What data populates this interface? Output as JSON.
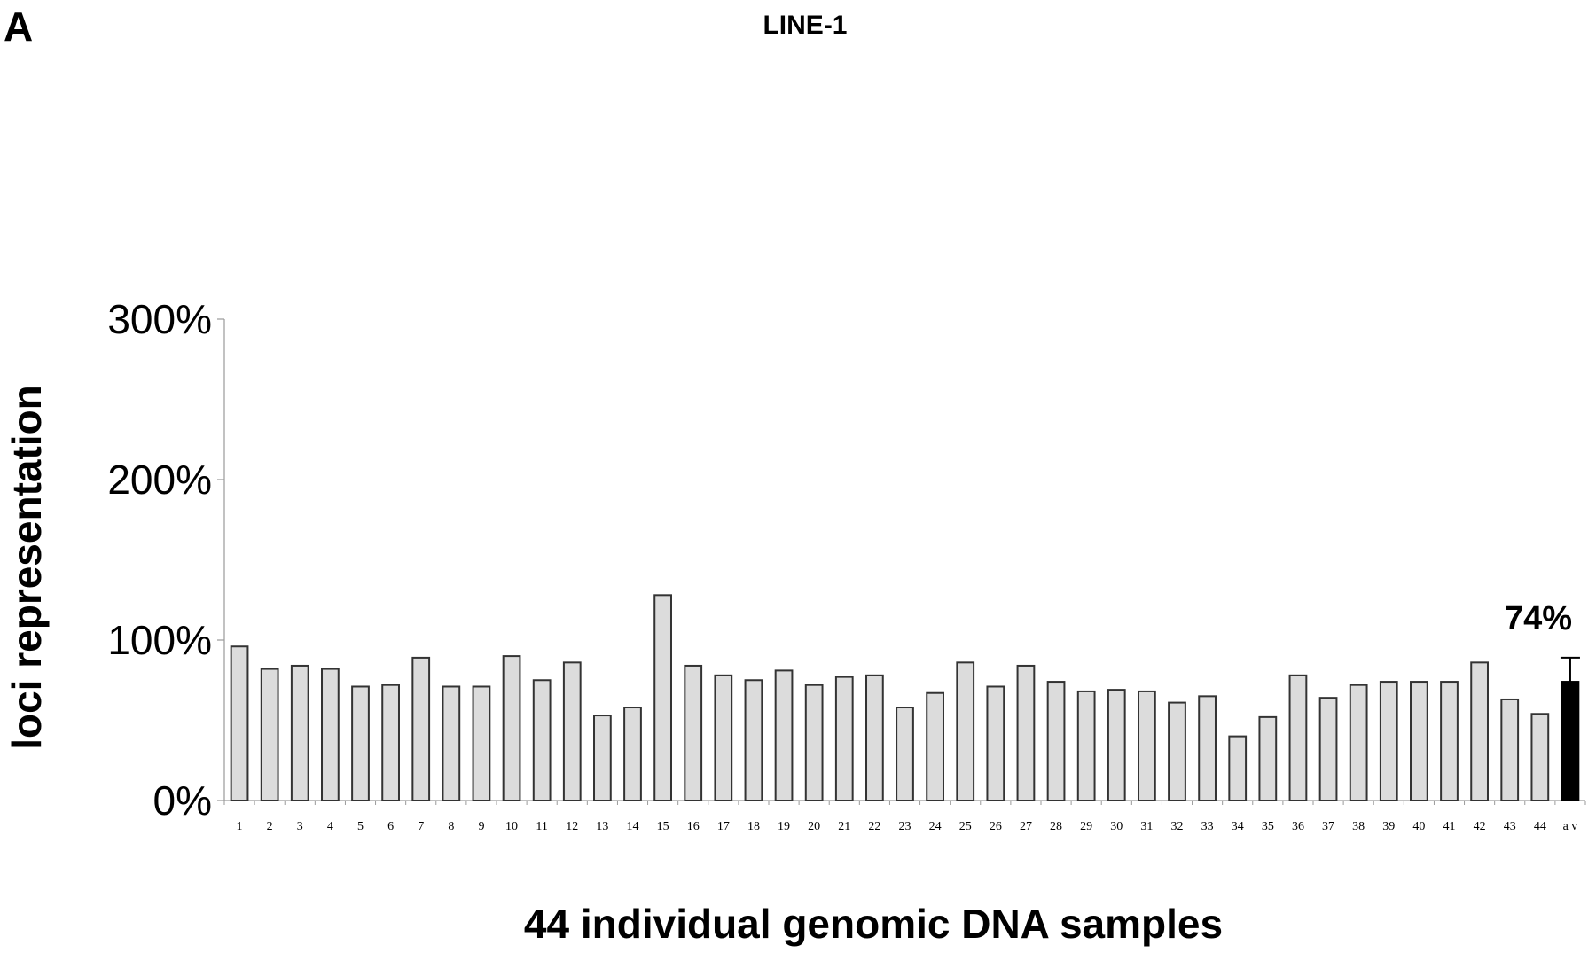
{
  "panel_label": "A",
  "chart_data": {
    "type": "bar",
    "title": "LINE-1",
    "xlabel": "44 individual genomic DNA samples",
    "ylabel": "loci representation",
    "ylim": [
      0,
      300
    ],
    "yticks": [
      "0%",
      "100%",
      "200%",
      "300%"
    ],
    "ytick_values": [
      0,
      100,
      200,
      300
    ],
    "grid": false,
    "categories": [
      "1",
      "2",
      "3",
      "4",
      "5",
      "6",
      "7",
      "8",
      "9",
      "10",
      "11",
      "12",
      "13",
      "14",
      "15",
      "16",
      "17",
      "18",
      "19",
      "20",
      "21",
      "22",
      "23",
      "24",
      "25",
      "26",
      "27",
      "28",
      "29",
      "30",
      "31",
      "32",
      "33",
      "34",
      "35",
      "36",
      "37",
      "38",
      "39",
      "40",
      "41",
      "42",
      "43",
      "44",
      "av"
    ],
    "values": [
      96,
      82,
      84,
      82,
      71,
      72,
      89,
      71,
      71,
      90,
      75,
      86,
      53,
      58,
      128,
      84,
      78,
      75,
      81,
      72,
      77,
      78,
      58,
      67,
      86,
      71,
      84,
      74,
      68,
      69,
      68,
      61,
      65,
      40,
      52,
      78,
      64,
      72,
      74,
      74,
      74,
      86,
      63,
      54,
      74
    ],
    "average": {
      "label": "av",
      "value": 74,
      "error": 15,
      "annotation": "74%"
    },
    "colors": {
      "sample_bar": "#dcdcdc",
      "average_bar": "#000000",
      "outline": "#333333"
    }
  }
}
